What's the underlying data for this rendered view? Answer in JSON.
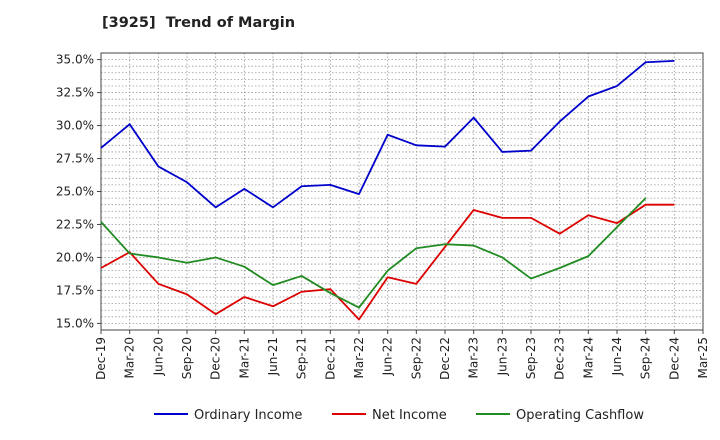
{
  "chart_data": {
    "type": "line",
    "title": "[3925]  Trend of Margin",
    "xlabel": "",
    "ylabel": "",
    "x_ticks": [
      "Dec-19",
      "Mar-20",
      "Jun-20",
      "Sep-20",
      "Dec-20",
      "Mar-21",
      "Jun-21",
      "Sep-21",
      "Dec-21",
      "Mar-22",
      "Jun-22",
      "Sep-22",
      "Dec-22",
      "Mar-23",
      "Jun-23",
      "Sep-23",
      "Dec-23",
      "Mar-24",
      "Jun-24",
      "Sep-24",
      "Dec-24",
      "Mar-25"
    ],
    "y_ticks": [
      "35.0%",
      "32.5%",
      "30.0%",
      "27.5%",
      "25.0%",
      "22.5%",
      "20.0%",
      "17.5%",
      "15.0%"
    ],
    "ylim": [
      14.5,
      35.5
    ],
    "y_tick_values": [
      35.0,
      32.5,
      30.0,
      27.5,
      25.0,
      22.5,
      20.0,
      17.5,
      15.0
    ],
    "grid": true,
    "legend_position": "bottom",
    "series": [
      {
        "name": "Ordinary Income",
        "color": "#0000cc",
        "values": [
          28.3,
          30.1,
          26.9,
          25.7,
          23.8,
          25.2,
          23.8,
          25.4,
          25.5,
          24.8,
          29.3,
          28.5,
          28.4,
          30.6,
          28.0,
          28.1,
          30.3,
          32.2,
          33.0,
          34.8,
          34.9,
          null
        ]
      },
      {
        "name": "Net Income",
        "color": "#dd0000",
        "values": [
          19.2,
          20.4,
          18.0,
          17.2,
          15.7,
          17.0,
          16.3,
          17.4,
          17.6,
          15.3,
          18.5,
          18.0,
          20.8,
          23.6,
          23.0,
          23.0,
          21.8,
          23.2,
          22.6,
          24.0,
          24.0,
          null
        ]
      },
      {
        "name": "Operating Cashflow",
        "color": "#228b22",
        "values": [
          22.7,
          20.3,
          20.0,
          19.6,
          20.0,
          19.3,
          17.9,
          18.6,
          17.3,
          16.2,
          19.0,
          20.7,
          21.0,
          20.9,
          20.0,
          18.4,
          19.2,
          20.1,
          22.3,
          24.5,
          null,
          null
        ]
      }
    ]
  }
}
